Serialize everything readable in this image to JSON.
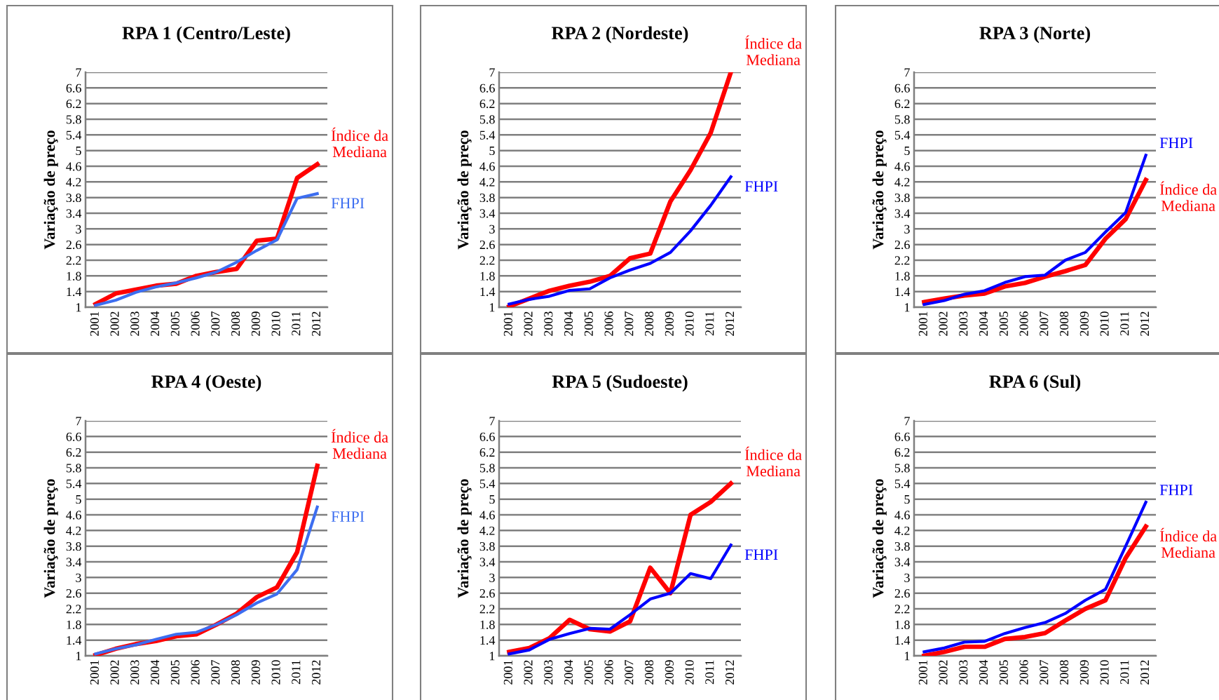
{
  "chart_data": [
    {
      "type": "line",
      "title": "RPA 1 (Centro/Leste)",
      "ylabel": "Variação de preço",
      "categories": [
        "2001",
        "2002",
        "2003",
        "2004",
        "2005",
        "2006",
        "2007",
        "2008",
        "2009",
        "2010",
        "2011",
        "2012"
      ],
      "ylim": [
        1,
        7
      ],
      "yticks": [
        1,
        1.4,
        1.8,
        2.2,
        2.6,
        3,
        3.4,
        3.8,
        4.2,
        4.6,
        5,
        5.4,
        5.8,
        6.2,
        6.6,
        7
      ],
      "grid": "y",
      "series": [
        {
          "name": "Índice da\nMediana",
          "color": "#ff0000",
          "values": [
            1.08,
            1.35,
            1.45,
            1.55,
            1.6,
            1.8,
            1.9,
            1.98,
            2.7,
            2.75,
            4.3,
            4.65
          ]
        },
        {
          "name": "FHPI",
          "color": "#3d6ef0",
          "values": [
            1.05,
            1.18,
            1.38,
            1.52,
            1.62,
            1.75,
            1.9,
            2.15,
            2.45,
            2.72,
            3.78,
            3.9
          ]
        }
      ]
    },
    {
      "type": "line",
      "title": "RPA 2 (Nordeste)",
      "ylabel": "Variação de preço",
      "categories": [
        "2001",
        "2002",
        "2003",
        "2004",
        "2005",
        "2006",
        "2007",
        "2008",
        "2009",
        "2010",
        "2011",
        "2012"
      ],
      "ylim": [
        1,
        7
      ],
      "yticks": [
        1,
        1.4,
        1.8,
        2.2,
        2.6,
        3,
        3.4,
        3.8,
        4.2,
        4.6,
        5,
        5.4,
        5.8,
        6.2,
        6.6,
        7
      ],
      "grid": "y",
      "series": [
        {
          "name": "Índice da\nMediana",
          "color": "#ff0000",
          "values": [
            1.02,
            1.22,
            1.42,
            1.55,
            1.65,
            1.8,
            2.25,
            2.37,
            3.7,
            4.5,
            5.45,
            7.0
          ]
        },
        {
          "name": "FHPI",
          "color": "#0000ff",
          "values": [
            1.08,
            1.2,
            1.28,
            1.43,
            1.47,
            1.75,
            1.95,
            2.12,
            2.4,
            2.95,
            3.6,
            4.33
          ]
        }
      ]
    },
    {
      "type": "line",
      "title": "RPA 3 (Norte)",
      "ylabel": "Variação de preço",
      "categories": [
        "2001",
        "2002",
        "2003",
        "2004",
        "2005",
        "2006",
        "2007",
        "2008",
        "2009",
        "2010",
        "2011",
        "2012"
      ],
      "ylim": [
        1,
        7
      ],
      "yticks": [
        1,
        1.4,
        1.8,
        2.2,
        2.6,
        3,
        3.4,
        3.8,
        4.2,
        4.6,
        5,
        5.4,
        5.8,
        6.2,
        6.6,
        7
      ],
      "grid": "y",
      "series": [
        {
          "name": "Índice da\nMediana",
          "color": "#ff0000",
          "values": [
            1.13,
            1.22,
            1.3,
            1.35,
            1.53,
            1.62,
            1.78,
            1.92,
            2.08,
            2.75,
            3.25,
            4.25
          ]
        },
        {
          "name": "FHPI",
          "color": "#0000ff",
          "values": [
            1.07,
            1.17,
            1.33,
            1.42,
            1.63,
            1.78,
            1.82,
            2.2,
            2.4,
            2.92,
            3.42,
            4.88
          ]
        }
      ]
    },
    {
      "type": "line",
      "title": "RPA 4 (Oeste)",
      "ylabel": "Variação de preço",
      "categories": [
        "2001",
        "2002",
        "2003",
        "2004",
        "2005",
        "2006",
        "2007",
        "2008",
        "2009",
        "2010",
        "2011",
        "2012"
      ],
      "ylim": [
        1,
        7
      ],
      "yticks": [
        1,
        1.4,
        1.8,
        2.2,
        2.6,
        3,
        3.4,
        3.8,
        4.2,
        4.6,
        5,
        5.4,
        5.8,
        6.2,
        6.6,
        7
      ],
      "grid": "y",
      "series": [
        {
          "name": "Índice da\nMediana",
          "color": "#ff0000",
          "values": [
            1.02,
            1.18,
            1.3,
            1.38,
            1.5,
            1.55,
            1.8,
            2.08,
            2.5,
            2.75,
            3.65,
            5.85
          ]
        },
        {
          "name": "FHPI",
          "color": "#3d6ef0",
          "values": [
            1.05,
            1.18,
            1.28,
            1.42,
            1.55,
            1.6,
            1.8,
            2.05,
            2.35,
            2.58,
            3.2,
            4.8
          ]
        }
      ]
    },
    {
      "type": "line",
      "title": "RPA 5 (Sudoeste)",
      "ylabel": "Variação de preço",
      "categories": [
        "2001",
        "2002",
        "2003",
        "2004",
        "2005",
        "2006",
        "2007",
        "2008",
        "2009",
        "2010",
        "2011",
        "2012"
      ],
      "ylim": [
        1,
        7
      ],
      "yticks": [
        1,
        1.4,
        1.8,
        2.2,
        2.6,
        3,
        3.4,
        3.8,
        4.2,
        4.6,
        5,
        5.4,
        5.8,
        6.2,
        6.6,
        7
      ],
      "grid": "y",
      "series": [
        {
          "name": "Índice da\nMediana",
          "color": "#ff0000",
          "values": [
            1.1,
            1.2,
            1.45,
            1.92,
            1.68,
            1.62,
            1.88,
            3.25,
            2.6,
            4.6,
            4.93,
            5.4
          ]
        },
        {
          "name": "FHPI",
          "color": "#0000ff",
          "values": [
            1.05,
            1.15,
            1.42,
            1.57,
            1.7,
            1.68,
            2.05,
            2.45,
            2.6,
            3.1,
            2.97,
            3.83
          ]
        }
      ]
    },
    {
      "type": "line",
      "title": "RPA 6 (Sul)",
      "ylabel": "Variação de preço",
      "categories": [
        "2001",
        "2002",
        "2003",
        "2004",
        "2005",
        "2006",
        "2007",
        "2008",
        "2009",
        "2010",
        "2011",
        "2012"
      ],
      "ylim": [
        1,
        7
      ],
      "yticks": [
        1,
        1.4,
        1.8,
        2.2,
        2.6,
        3,
        3.4,
        3.8,
        4.2,
        4.6,
        5,
        5.4,
        5.8,
        6.2,
        6.6,
        7
      ],
      "grid": "y",
      "series": [
        {
          "name": "Índice da\nMediana",
          "color": "#ff0000",
          "values": [
            1.0,
            1.1,
            1.23,
            1.23,
            1.43,
            1.48,
            1.58,
            1.9,
            2.2,
            2.42,
            3.5,
            4.3
          ]
        },
        {
          "name": "FHPI",
          "color": "#0000ff",
          "values": [
            1.1,
            1.2,
            1.35,
            1.37,
            1.57,
            1.72,
            1.85,
            2.08,
            2.42,
            2.7,
            3.8,
            4.92
          ]
        }
      ]
    }
  ]
}
